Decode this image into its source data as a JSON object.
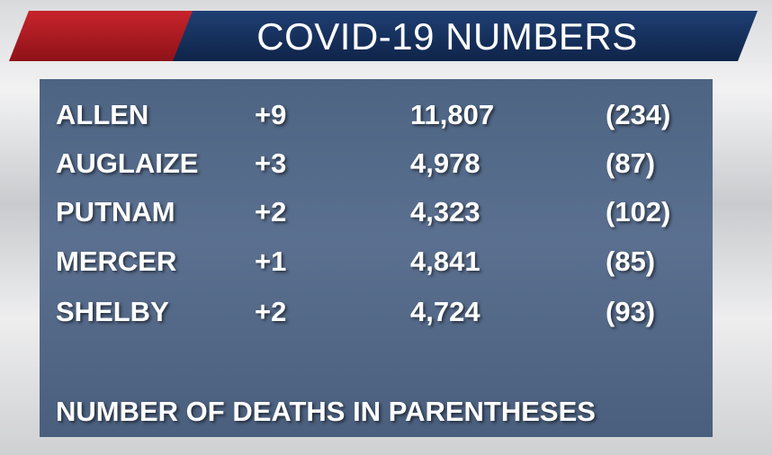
{
  "header": {
    "title": "COVID-19 NUMBERS"
  },
  "table": {
    "rows": [
      [
        "ALLEN",
        "+9",
        "11,807",
        "(234)"
      ],
      [
        "AUGLAIZE",
        "+3",
        "4,978",
        "(87)"
      ],
      [
        "PUTNAM",
        "+2",
        "4,323",
        "(102)"
      ],
      [
        "MERCER",
        "+1",
        "4,841",
        "(85)"
      ],
      [
        "SHELBY",
        "+2",
        "4,724",
        "(93)"
      ]
    ]
  },
  "footer": {
    "note": "NUMBER OF DEATHS IN PARENTHESES"
  }
}
